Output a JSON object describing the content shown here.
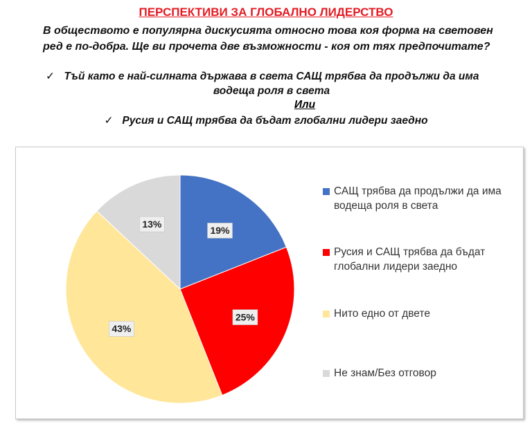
{
  "header": {
    "title": "ПЕРСПЕКТИВИ ЗА ГЛОБАЛНО ЛИДЕРСТВО",
    "question": "В обществото е популярна дискусията относно това коя форма на световен ред е по-добра. Ще ви прочета две възможности - коя от тях предпочитате?",
    "options": [
      "Тъй като е най-силната държава в света САЩ трябва да продължи да има водеща роля в света",
      "Русия и САЩ трябва да бъдат глобални лидери заедно"
    ],
    "or": "Или"
  },
  "chart_data": {
    "type": "pie",
    "categories": [
      "САЩ трябва да продължи да има водеща роля в света",
      "Русия и САЩ трябва да бъдат глобални лидери заедно",
      "Нито едно от двете",
      "Не знам/Без отговор"
    ],
    "values": [
      19,
      25,
      43,
      13
    ],
    "value_labels": [
      "19%",
      "25%",
      "43%",
      "13%"
    ],
    "colors": [
      "#4472c4",
      "#ff0000",
      "#ffe699",
      "#d9d9d9"
    ],
    "legend": "right"
  }
}
